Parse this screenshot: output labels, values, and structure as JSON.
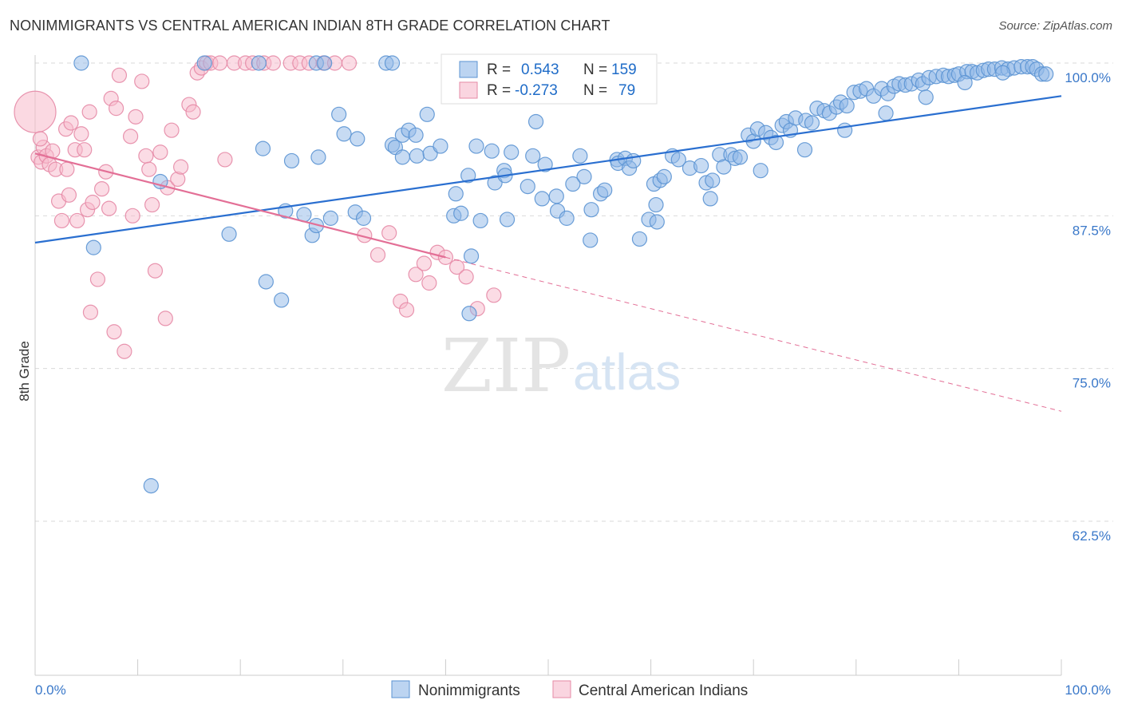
{
  "title": "NONIMMIGRANTS VS CENTRAL AMERICAN INDIAN 8TH GRADE CORRELATION CHART",
  "source": "Source: ZipAtlas.com",
  "watermark": {
    "zip": "ZIP",
    "atlas": "atlas"
  },
  "chart_data": {
    "type": "scatter",
    "title": "NONIMMIGRANTS VS CENTRAL AMERICAN INDIAN 8TH GRADE CORRELATION CHART",
    "xlabel": "",
    "ylabel": "8th Grade",
    "xlim": [
      0,
      100
    ],
    "ylim": [
      50,
      101.2
    ],
    "x_tick_labels": [
      "0.0%",
      "100.0%"
    ],
    "y_ticks": [
      62.5,
      75.0,
      87.5,
      100.0
    ],
    "y_tick_labels": [
      "62.5%",
      "75.0%",
      "87.5%",
      "100.0%"
    ],
    "grid": true,
    "legend": {
      "position": "top-center",
      "r_label": "R =",
      "n_label": "N ="
    },
    "series": [
      {
        "name": "Nonimmigrants",
        "color": "#8fb8e8",
        "stroke": "#5b93d3",
        "line_color": "#2a6fd0",
        "R": "0.543",
        "N": "159",
        "trend": {
          "x": [
            0,
            100
          ],
          "y": [
            85.3,
            97.3
          ]
        },
        "points": [
          [
            4.5,
            100
          ],
          [
            16.5,
            100
          ],
          [
            21.8,
            100
          ],
          [
            27.4,
            100
          ],
          [
            28.2,
            100
          ],
          [
            34.2,
            100
          ],
          [
            34.8,
            100
          ],
          [
            5.7,
            84.9
          ],
          [
            11.3,
            65.4
          ],
          [
            12.2,
            90.3
          ],
          [
            18.9,
            86
          ],
          [
            22.2,
            93
          ],
          [
            22.5,
            82.1
          ],
          [
            24,
            80.6
          ],
          [
            24.4,
            87.9
          ],
          [
            25,
            92
          ],
          [
            26.2,
            87.6
          ],
          [
            27,
            85.9
          ],
          [
            27.4,
            86.7
          ],
          [
            27.6,
            92.3
          ],
          [
            28.8,
            87.3
          ],
          [
            29.6,
            95.8
          ],
          [
            30.1,
            94.2
          ],
          [
            31.2,
            87.8
          ],
          [
            31.4,
            93.8
          ],
          [
            32,
            87.3
          ],
          [
            34.8,
            93.3
          ],
          [
            35.1,
            93.1
          ],
          [
            35.8,
            94.1
          ],
          [
            35.8,
            92.3
          ],
          [
            36.4,
            94.5
          ],
          [
            37.1,
            94.1
          ],
          [
            37.2,
            92.4
          ],
          [
            38.2,
            95.8
          ],
          [
            38.5,
            92.6
          ],
          [
            39.5,
            93.2
          ],
          [
            40.8,
            87.5
          ],
          [
            41,
            89.3
          ],
          [
            41.5,
            87.7
          ],
          [
            42.2,
            90.8
          ],
          [
            42.3,
            79.5
          ],
          [
            42.5,
            84.2
          ],
          [
            43.4,
            87.1
          ],
          [
            43,
            93.2
          ],
          [
            44.5,
            92.8
          ],
          [
            44.8,
            90.2
          ],
          [
            45.7,
            91.2
          ],
          [
            45.8,
            90.8
          ],
          [
            46,
            87.2
          ],
          [
            46.4,
            92.7
          ],
          [
            48,
            89.9
          ],
          [
            48.5,
            92.4
          ],
          [
            48.8,
            95.2
          ],
          [
            49.4,
            88.9
          ],
          [
            49.7,
            91.7
          ],
          [
            50.8,
            89.1
          ],
          [
            50.9,
            87.9
          ],
          [
            51.8,
            87.3
          ],
          [
            53.1,
            92.4
          ],
          [
            53.5,
            90.7
          ],
          [
            54.1,
            85.5
          ],
          [
            54.2,
            88
          ],
          [
            55.1,
            89.3
          ],
          [
            55.5,
            89.6
          ],
          [
            56.7,
            92.1
          ],
          [
            56.8,
            91.8
          ],
          [
            57.5,
            92.2
          ],
          [
            57.9,
            91.4
          ],
          [
            58.3,
            92
          ],
          [
            58.9,
            85.6
          ],
          [
            59.8,
            87.2
          ],
          [
            60.3,
            90.1
          ],
          [
            60.5,
            88.4
          ],
          [
            60.9,
            90.4
          ],
          [
            61.3,
            90.7
          ],
          [
            62.1,
            92.4
          ],
          [
            62.7,
            92.1
          ],
          [
            63.8,
            91.4
          ],
          [
            64.9,
            91.6
          ],
          [
            65.4,
            90.2
          ],
          [
            66,
            90.4
          ],
          [
            66.7,
            92.5
          ],
          [
            67.1,
            91.5
          ],
          [
            67.8,
            92.5
          ],
          [
            68.2,
            92.2
          ],
          [
            68.7,
            92.3
          ],
          [
            69.5,
            94.1
          ],
          [
            70,
            93.6
          ],
          [
            70.4,
            94.6
          ],
          [
            71.2,
            94.3
          ],
          [
            71.7,
            93.9
          ],
          [
            72.2,
            93.5
          ],
          [
            72.8,
            94.9
          ],
          [
            73.2,
            95.2
          ],
          [
            73.6,
            94.5
          ],
          [
            74.1,
            95.5
          ],
          [
            75.1,
            95.3
          ],
          [
            75.7,
            95.1
          ],
          [
            76.2,
            96.3
          ],
          [
            76.9,
            96.1
          ],
          [
            77.4,
            95.9
          ],
          [
            78.1,
            96.4
          ],
          [
            78.5,
            96.8
          ],
          [
            79.1,
            96.5
          ],
          [
            79.8,
            97.6
          ],
          [
            80.4,
            97.7
          ],
          [
            81,
            97.9
          ],
          [
            81.7,
            97.3
          ],
          [
            82.5,
            97.9
          ],
          [
            83.1,
            97.5
          ],
          [
            83.7,
            98.1
          ],
          [
            84.2,
            98.3
          ],
          [
            84.8,
            98.2
          ],
          [
            85.4,
            98.3
          ],
          [
            86.1,
            98.6
          ],
          [
            86.5,
            98.3
          ],
          [
            87.1,
            98.8
          ],
          [
            87.8,
            98.9
          ],
          [
            88.5,
            99
          ],
          [
            89,
            98.9
          ],
          [
            89.6,
            99
          ],
          [
            90,
            99.1
          ],
          [
            90.8,
            99.3
          ],
          [
            91.3,
            99.3
          ],
          [
            91.8,
            99.2
          ],
          [
            92.4,
            99.4
          ],
          [
            92.9,
            99.5
          ],
          [
            93.5,
            99.5
          ],
          [
            94.2,
            99.6
          ],
          [
            94.8,
            99.5
          ],
          [
            95.4,
            99.6
          ],
          [
            96.1,
            99.7
          ],
          [
            96.7,
            99.7
          ],
          [
            97.2,
            99.7
          ],
          [
            97.6,
            99.5
          ],
          [
            98.1,
            99.1
          ],
          [
            98.5,
            99.1
          ],
          [
            52.4,
            90.1
          ],
          [
            60.6,
            87
          ],
          [
            65.8,
            88.9
          ],
          [
            70.7,
            91.2
          ],
          [
            75,
            92.9
          ],
          [
            78.9,
            94.5
          ],
          [
            82.9,
            95.9
          ],
          [
            86.8,
            97.2
          ],
          [
            90.6,
            98.4
          ],
          [
            94.3,
            99.2
          ]
        ]
      },
      {
        "name": "Central American Indians",
        "color": "#f7b9cb",
        "stroke": "#e58aa6",
        "line_color": "#e36f96",
        "R": "-0.273",
        "N": "79",
        "trend": {
          "x": [
            0,
            40
          ],
          "y": [
            92.6,
            84.1
          ]
        },
        "trend_extension": {
          "x": [
            40,
            100
          ],
          "y": [
            84.1,
            71.5
          ]
        },
        "points": [
          [
            0,
            96
          ],
          [
            0.3,
            92.3
          ],
          [
            0.6,
            91.9
          ],
          [
            0.8,
            93.1
          ],
          [
            1.1,
            92.4
          ],
          [
            1.4,
            91.7
          ],
          [
            1.7,
            92.8
          ],
          [
            2,
            91.3
          ],
          [
            2.3,
            88.7
          ],
          [
            2.6,
            87.1
          ],
          [
            3,
            94.6
          ],
          [
            3.1,
            91.3
          ],
          [
            3.3,
            89.2
          ],
          [
            3.5,
            95.1
          ],
          [
            3.9,
            92.9
          ],
          [
            4.1,
            87.1
          ],
          [
            4.5,
            94.2
          ],
          [
            4.8,
            92.9
          ],
          [
            5.1,
            88
          ],
          [
            5.3,
            96
          ],
          [
            5.4,
            79.6
          ],
          [
            5.6,
            88.6
          ],
          [
            6.1,
            82.3
          ],
          [
            6.5,
            89.7
          ],
          [
            6.9,
            91.1
          ],
          [
            7.2,
            88.1
          ],
          [
            7.4,
            97.1
          ],
          [
            7.7,
            78
          ],
          [
            7.9,
            96.3
          ],
          [
            8.2,
            99
          ],
          [
            8.7,
            76.4
          ],
          [
            9.3,
            94
          ],
          [
            9.5,
            87.5
          ],
          [
            9.8,
            95.6
          ],
          [
            10.4,
            98.5
          ],
          [
            10.8,
            92.4
          ],
          [
            11.1,
            91.3
          ],
          [
            11.4,
            88.4
          ],
          [
            11.7,
            83
          ],
          [
            12.2,
            92.7
          ],
          [
            12.7,
            79.1
          ],
          [
            12.9,
            89.8
          ],
          [
            13.3,
            94.5
          ],
          [
            13.9,
            90.5
          ],
          [
            14.2,
            91.5
          ],
          [
            15,
            96.6
          ],
          [
            15.4,
            96
          ],
          [
            15.8,
            99.2
          ],
          [
            16.2,
            99.6
          ],
          [
            16.7,
            100
          ],
          [
            17.1,
            100
          ],
          [
            18,
            100
          ],
          [
            18.5,
            92.1
          ],
          [
            19.4,
            100
          ],
          [
            20.5,
            100
          ],
          [
            21.2,
            100
          ],
          [
            22.3,
            100
          ],
          [
            23.2,
            100
          ],
          [
            24.9,
            100
          ],
          [
            25.8,
            100
          ],
          [
            26.7,
            100
          ],
          [
            28.1,
            100
          ],
          [
            29.2,
            100
          ],
          [
            30.6,
            100
          ],
          [
            32.1,
            85.9
          ],
          [
            33.4,
            84.3
          ],
          [
            34.5,
            86.1
          ],
          [
            35.6,
            80.5
          ],
          [
            36.2,
            79.8
          ],
          [
            37.1,
            82.7
          ],
          [
            37.9,
            83.6
          ],
          [
            38.4,
            82
          ],
          [
            39.2,
            84.5
          ],
          [
            40,
            84.1
          ],
          [
            41.1,
            83.3
          ],
          [
            42,
            82.5
          ],
          [
            43.1,
            79.9
          ],
          [
            44.7,
            81
          ],
          [
            0.5,
            93.8
          ]
        ]
      }
    ]
  },
  "bottom_legend": [
    "Nonimmigrants",
    "Central American Indians"
  ]
}
